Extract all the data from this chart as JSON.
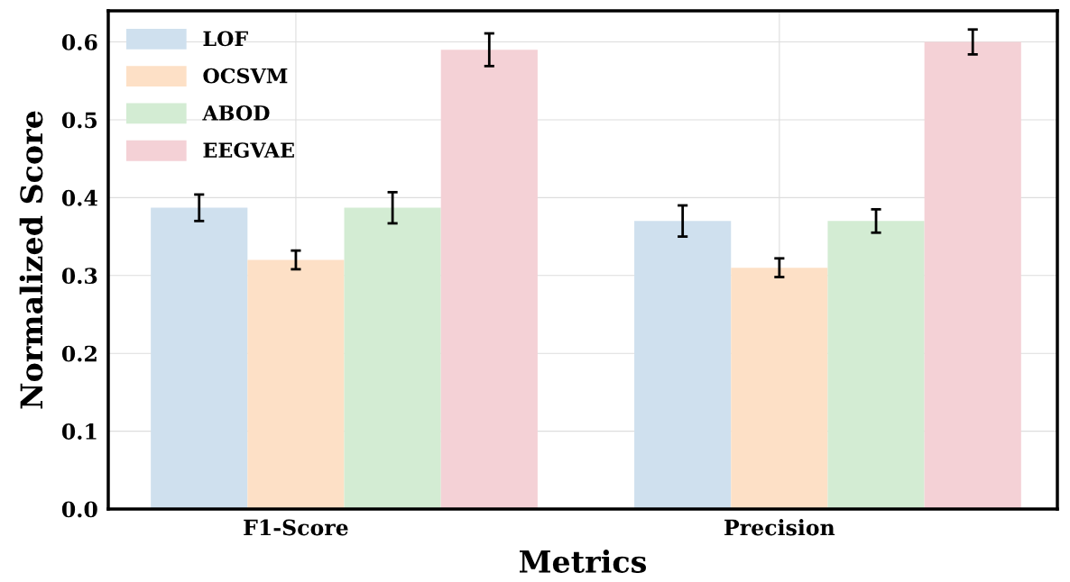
{
  "chart_data": {
    "type": "bar",
    "xlabel": "Metrics",
    "ylabel": "Normalized Score",
    "categories": [
      "F1-Score",
      "Precision"
    ],
    "series": [
      {
        "name": "LOF",
        "color": "#cfe0ee",
        "values": [
          0.387,
          0.37
        ],
        "errors": [
          0.017,
          0.02
        ]
      },
      {
        "name": "OCSVM",
        "color": "#fde0c6",
        "values": [
          0.32,
          0.31
        ],
        "errors": [
          0.012,
          0.012
        ]
      },
      {
        "name": "ABOD",
        "color": "#d3ecd3",
        "values": [
          0.387,
          0.37
        ],
        "errors": [
          0.02,
          0.015
        ]
      },
      {
        "name": "EEGVAE",
        "color": "#f4d1d6",
        "values": [
          0.59,
          0.6
        ],
        "errors": [
          0.021,
          0.016
        ]
      }
    ],
    "ylim": [
      0,
      0.64
    ],
    "yticks": [
      {
        "value": 0,
        "label": "0.0"
      },
      0.1,
      0.2,
      0.3,
      0.4,
      0.5,
      0.6
    ],
    "grid": true,
    "legend": "top left"
  }
}
